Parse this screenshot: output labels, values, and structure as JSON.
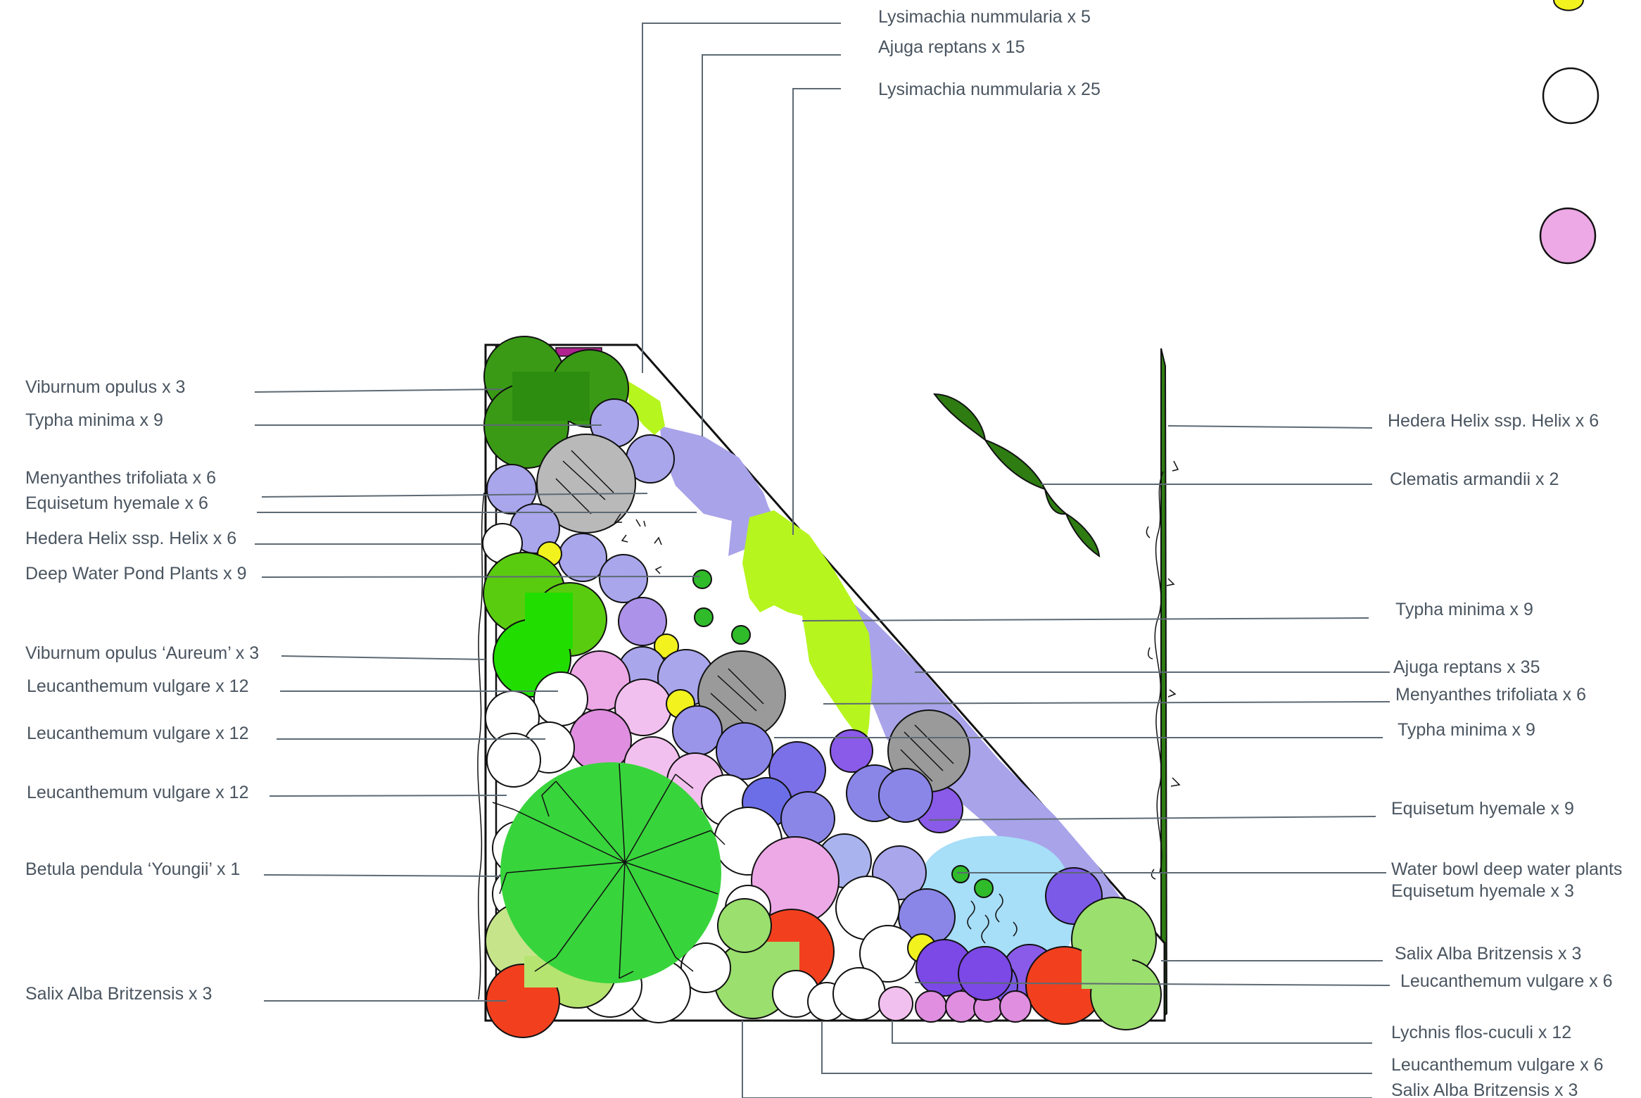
{
  "colors": {
    "dark_green": "#3a9a16",
    "mid_green": "#5acc10",
    "bright_green": "#22dd00",
    "birch_green": "#38d43c",
    "lime": "#b6f51e",
    "light_green": "#9bdf6e",
    "pale_green": "#c6e58a",
    "lavender": "#a9a6ec",
    "lavender_band": "#a9a3ea",
    "periwinkle": "#8a86e8",
    "blue_violet": "#7c70e8",
    "violet": "#8a5ae8",
    "purple_deep": "#7c48e6",
    "pink": "#eda8e6",
    "pink_light": "#f2c0ee",
    "magenta_light": "#e08ee0",
    "grey": "#b9b9b9",
    "grey_dark": "#9a9a9a",
    "yellow": "#f2f21e",
    "red": "#f2401e",
    "water_blue": "#a7def8",
    "pond_dot": "#2fbb2a",
    "ivy_green": "#2e7c12"
  },
  "legend_symbols": [
    {
      "name": "yellow-circle-icon",
      "color": "#f2f21e"
    },
    {
      "name": "white-circle-icon",
      "color": "#ffffff"
    },
    {
      "name": "pink-circle-icon",
      "color": "#eda8e6"
    }
  ],
  "labels": {
    "top": [
      "Lysimachia nummularia x 5",
      "Ajuga reptans x 15",
      "Lysimachia nummularia x 25"
    ],
    "left": [
      "Viburnum opulus x  3",
      "Typha minima x 9",
      "Menyanthes trifoliata x 6",
      "Equisetum hyemale x 6",
      "Hedera Helix ssp. Helix x 6",
      "Deep Water Pond Plants x 9",
      "Viburnum opulus ‘Aureum’ x 3",
      "Leucanthemum vulgare x 12",
      "Leucanthemum vulgare x 12",
      "Leucanthemum vulgare x 12",
      "Betula pendula ‘Youngii’ x 1",
      "Salix Alba Britzensis x 3"
    ],
    "right": [
      "Hedera Helix ssp. Helix x 6",
      "Clematis armandii x 2",
      "Typha minima x 9",
      "Ajuga reptans x 35",
      "Menyanthes trifoliata x 6",
      "Typha minima x 9",
      "Equisetum hyemale x 9",
      "Water bowl deep water plants",
      "Equisetum hyemale x 3",
      "Salix Alba Britzensis x 3",
      "Leucanthemum vulgare x 6",
      "Lychnis flos-cuculi x 12",
      "Leucanthemum vulgare x 6",
      "Salix Alba Britzensis x 3"
    ]
  }
}
